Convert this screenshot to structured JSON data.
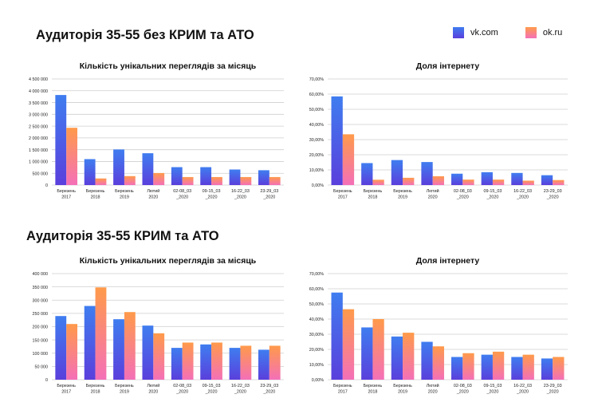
{
  "sections": [
    {
      "title": "Аудиторія 35-55 без КРИМ та АТО"
    },
    {
      "title": "Аудиторія 35-55 КРИМ та АТО"
    }
  ],
  "legend": {
    "vk": "vk.com",
    "ok": "ok.ru"
  },
  "colors": {
    "vk_top": "#3f7df0",
    "vk_bottom": "#5a3fdc",
    "ok_top": "#ff9a4a",
    "ok_bottom": "#f470b8",
    "grid": "#cfcfcf",
    "text": "#222222"
  },
  "chart_data": [
    {
      "type": "bar",
      "title": "Кількість унікальних переглядів за місяць",
      "categories": [
        [
          "Березень",
          "2017"
        ],
        [
          "Березень",
          "2018"
        ],
        [
          "Березень",
          "2019"
        ],
        [
          "Лютий",
          "2020"
        ],
        [
          "02-08_03",
          "_2020"
        ],
        [
          "09-15_03",
          "_2020"
        ],
        [
          "16-22_03",
          "_2020"
        ],
        [
          "23-29_03",
          "_2020"
        ]
      ],
      "series": [
        {
          "name": "vk.com",
          "values": [
            3820000,
            1100000,
            1510000,
            1350000,
            760000,
            760000,
            660000,
            630000
          ]
        },
        {
          "name": "ok.ru",
          "values": [
            2430000,
            280000,
            380000,
            510000,
            340000,
            340000,
            340000,
            340000
          ]
        }
      ],
      "ylim": [
        0,
        4500000
      ],
      "yticks": [
        "0",
        "500 000",
        "1 000 000",
        "1 500 000",
        "2 000 000",
        "2 500 000",
        "3 000 000",
        "3 500 000",
        "4 000 000",
        "4 500 000"
      ],
      "grid": true
    },
    {
      "type": "bar",
      "title": "Доля інтернету",
      "categories": [
        [
          "Березень",
          "2017"
        ],
        [
          "Березень",
          "2018"
        ],
        [
          "Березень",
          "2019"
        ],
        [
          "Лютий",
          "2020"
        ],
        [
          "02-08_03",
          "_2020"
        ],
        [
          "09-15_03",
          "_2020"
        ],
        [
          "16-22_03",
          "_2020"
        ],
        [
          "23-29_03",
          "_2020"
        ]
      ],
      "series": [
        {
          "name": "vk.com",
          "values": [
            58.5,
            14.5,
            16.5,
            15.2,
            7.5,
            8.5,
            8.0,
            6.5
          ]
        },
        {
          "name": "ok.ru",
          "values": [
            33.5,
            3.5,
            4.8,
            5.8,
            3.6,
            3.6,
            2.9,
            3.3
          ]
        }
      ],
      "ylim": [
        0,
        70
      ],
      "yticks": [
        "0,00%",
        "10,00%",
        "20,00%",
        "30,00%",
        "40,00%",
        "50,00%",
        "60,00%",
        "70,00%"
      ],
      "grid": true
    },
    {
      "type": "bar",
      "title": "Кількість унікальних переглядів за місяць",
      "categories": [
        [
          "Березень",
          "2017"
        ],
        [
          "Березень",
          "2018"
        ],
        [
          "Березень",
          "2019"
        ],
        [
          "Лютий",
          "2020"
        ],
        [
          "02-08_03",
          "_2020"
        ],
        [
          "09-15_03",
          "_2020"
        ],
        [
          "16-22_03",
          "_2020"
        ],
        [
          "23-29_03",
          "_2020"
        ]
      ],
      "series": [
        {
          "name": "vk.com",
          "values": [
            240000,
            278000,
            228000,
            204000,
            120000,
            133000,
            120000,
            113000
          ]
        },
        {
          "name": "ok.ru",
          "values": [
            210000,
            348000,
            255000,
            175000,
            140000,
            140000,
            128000,
            128000
          ]
        }
      ],
      "ylim": [
        0,
        400000
      ],
      "yticks": [
        "0",
        "50 000",
        "100 000",
        "150 000",
        "200 000",
        "250 000",
        "300 000",
        "350 000",
        "400 000"
      ],
      "grid": true
    },
    {
      "type": "bar",
      "title": "Доля інтернету",
      "categories": [
        [
          "Березень",
          "2017"
        ],
        [
          "Березень",
          "2018"
        ],
        [
          "Березень",
          "2019"
        ],
        [
          "Лютий",
          "2020"
        ],
        [
          "02-08_03",
          "_2020"
        ],
        [
          "09-15_03",
          "_2020"
        ],
        [
          "16-22_03",
          "_2020"
        ],
        [
          "23-29_03",
          "_2020"
        ]
      ],
      "series": [
        {
          "name": "vk.com",
          "values": [
            57.5,
            34.5,
            28.5,
            25.0,
            15.0,
            16.5,
            15.0,
            14.0
          ]
        },
        {
          "name": "ok.ru",
          "values": [
            46.5,
            40.0,
            31.0,
            22.0,
            17.5,
            18.5,
            16.5,
            15.0
          ]
        }
      ],
      "ylim": [
        0,
        70
      ],
      "yticks": [
        "0,00%",
        "10,00%",
        "20,00%",
        "30,00%",
        "40,00%",
        "50,00%",
        "60,00%",
        "70,00%"
      ],
      "grid": true
    }
  ]
}
